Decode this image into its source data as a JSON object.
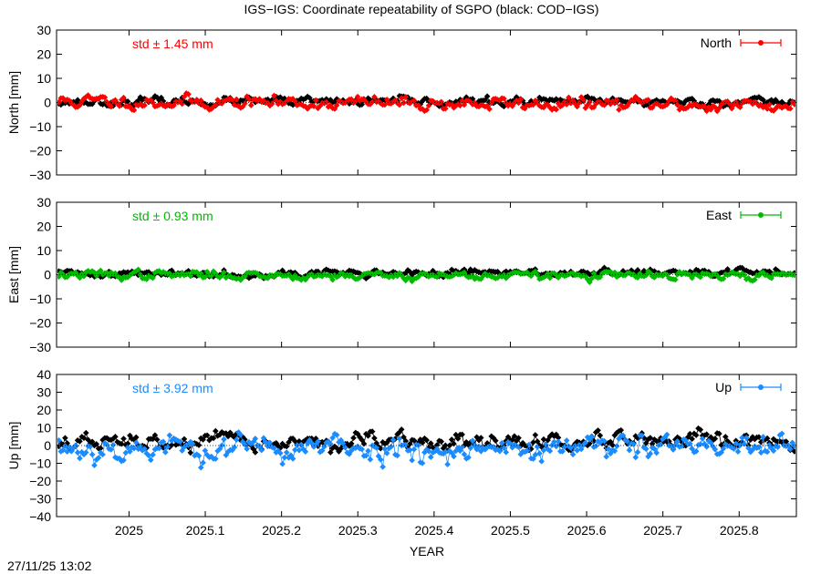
{
  "title": "IGS−IGS: Coordinate repeatability of SGPO (black: COD−IGS)",
  "timestamp": "27/11/25 13:02",
  "colors": {
    "north": "#ff0000",
    "east": "#00bb00",
    "up": "#1a8cff",
    "reference": "#000000"
  },
  "chart_data": [
    {
      "type": "line",
      "component": "North",
      "ylabel": "North [mm]",
      "std_label": "std ± 1.45 mm",
      "legend": "North",
      "legend_position": "top-right",
      "xlim": [
        2024.905,
        2025.875
      ],
      "ylim": [
        -30,
        30
      ],
      "yticks": [
        -30,
        -20,
        -10,
        0,
        10,
        20,
        30
      ],
      "ytick_labels": [
        "−30",
        "−20",
        "−10",
        "0",
        "10",
        "20",
        "30"
      ],
      "series": [
        {
          "name": "IGS−IGS",
          "color": "#ff0000",
          "amplitude": 1.45,
          "offset": 0.5,
          "trend": -1.8,
          "seed": 11,
          "start": 2024.908,
          "end": 2025.875,
          "step": 0.00274
        },
        {
          "name": "COD−IGS",
          "color": "#000000",
          "amplitude": 0.9,
          "offset": 0.3,
          "trend": 0,
          "seed": 23,
          "start": 2024.908,
          "end": 2025.875,
          "step": 0.00274
        }
      ]
    },
    {
      "type": "line",
      "component": "East",
      "ylabel": "East [mm]",
      "std_label": "std ± 0.93 mm",
      "legend": "East",
      "legend_position": "top-right",
      "xlim": [
        2024.905,
        2025.875
      ],
      "ylim": [
        -30,
        30
      ],
      "yticks": [
        -30,
        -20,
        -10,
        0,
        10,
        20,
        30
      ],
      "ytick_labels": [
        "−30",
        "−20",
        "−10",
        "0",
        "10",
        "20",
        "30"
      ],
      "series": [
        {
          "name": "IGS−IGS",
          "color": "#00bb00",
          "amplitude": 0.93,
          "offset": 0.0,
          "trend": -0.6,
          "seed": 37,
          "start": 2024.908,
          "end": 2025.875,
          "step": 0.00274
        },
        {
          "name": "COD−IGS",
          "color": "#000000",
          "amplitude": 0.8,
          "offset": 0.4,
          "trend": 0.5,
          "seed": 41,
          "start": 2024.908,
          "end": 2025.875,
          "step": 0.00274
        }
      ]
    },
    {
      "type": "line",
      "component": "Up",
      "ylabel": "Up [mm]",
      "std_label": "std ± 3.92 mm",
      "legend": "Up",
      "legend_position": "top-right",
      "xlim": [
        2024.905,
        2025.875
      ],
      "ylim": [
        -40,
        40
      ],
      "yticks": [
        -40,
        -30,
        -20,
        -10,
        0,
        10,
        20,
        30,
        40
      ],
      "ytick_labels": [
        "−40",
        "−30",
        "−20",
        "−10",
        "0",
        "10",
        "20",
        "30",
        "40"
      ],
      "series": [
        {
          "name": "IGS−IGS",
          "color": "#1a8cff",
          "amplitude": 3.92,
          "offset": -1.5,
          "trend": 0,
          "seed": 53,
          "start": 2024.908,
          "end": 2025.875,
          "step": 0.00274
        },
        {
          "name": "COD−IGS",
          "color": "#000000",
          "amplitude": 2.5,
          "offset": 1.5,
          "trend": 0,
          "seed": 67,
          "start": 2024.908,
          "end": 2025.875,
          "step": 0.00274
        }
      ]
    }
  ],
  "xaxis": {
    "label": "YEAR",
    "ticks": [
      2025,
      2025.1,
      2025.2,
      2025.3,
      2025.4,
      2025.5,
      2025.6,
      2025.7,
      2025.8
    ],
    "tick_labels": [
      "2025",
      "2025.1",
      "2025.2",
      "2025.3",
      "2025.4",
      "2025.5",
      "2025.6",
      "2025.7",
      "2025.8"
    ]
  }
}
